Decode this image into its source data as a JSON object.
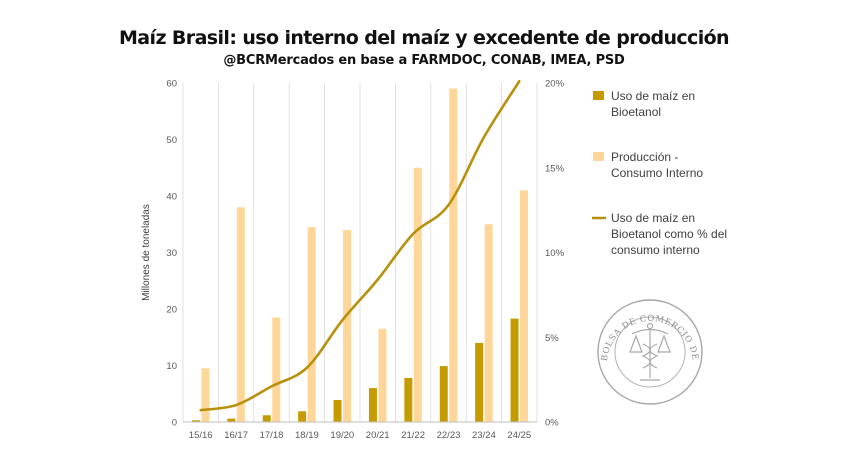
{
  "title": "Maíz Brasil: uso interno del maíz y excedente de producción",
  "subtitle": "@BCRMercados en base a FARMDOC, CONAB, IMEA, PSD",
  "watermark": {
    "text": "BOLSA DE COMERCIO DE ROSARIO",
    "color": "#9a9a9a"
  },
  "colors": {
    "bioetanol": "#C59B00",
    "excedente": "#FFD699",
    "line": "#B8900C",
    "grid": "#d9d9d9",
    "axis": "#bfbfbf"
  },
  "chart_data": {
    "type": "bar",
    "categories": [
      "15/16",
      "16/17",
      "17/18",
      "18/19",
      "19/20",
      "20/21",
      "21/22",
      "22/23",
      "23/24",
      "24/25"
    ],
    "ylabel": "Millones de toneladas",
    "ylim": [
      0,
      60
    ],
    "yticks": [
      "0",
      "10",
      "20",
      "30",
      "40",
      "50",
      "60"
    ],
    "y2lim": [
      0,
      0.2
    ],
    "y2ticks": [
      "0%",
      "5%",
      "10%",
      "15%",
      "20%"
    ],
    "grid": true,
    "legend_position": "right",
    "series": [
      {
        "name": "Uso de maíz en Bioetanol",
        "type": "bar",
        "axis": "left",
        "values": [
          0.3,
          0.6,
          1.2,
          1.9,
          3.9,
          6.0,
          7.8,
          9.9,
          14.0,
          18.3
        ]
      },
      {
        "name": "Producción - Consumo Interno",
        "type": "bar",
        "axis": "left",
        "values": [
          9.5,
          38.0,
          18.5,
          34.5,
          34.0,
          16.5,
          45.0,
          59.0,
          35.0,
          41.0
        ]
      },
      {
        "name": "Uso de maíz en Bioetanol como % del consumo interno",
        "type": "line",
        "axis": "right",
        "values": [
          0.007,
          0.01,
          0.021,
          0.032,
          0.06,
          0.084,
          0.111,
          0.128,
          0.168,
          0.201
        ]
      }
    ],
    "legend": [
      {
        "label_lines": [
          "Uso de maíz en",
          "Bioetanol"
        ]
      },
      {
        "label_lines": [
          "Producción -",
          "Consumo Interno"
        ]
      },
      {
        "label_lines": [
          "Uso de maíz en",
          "Bioetanol como % del",
          "consumo interno"
        ]
      }
    ]
  }
}
